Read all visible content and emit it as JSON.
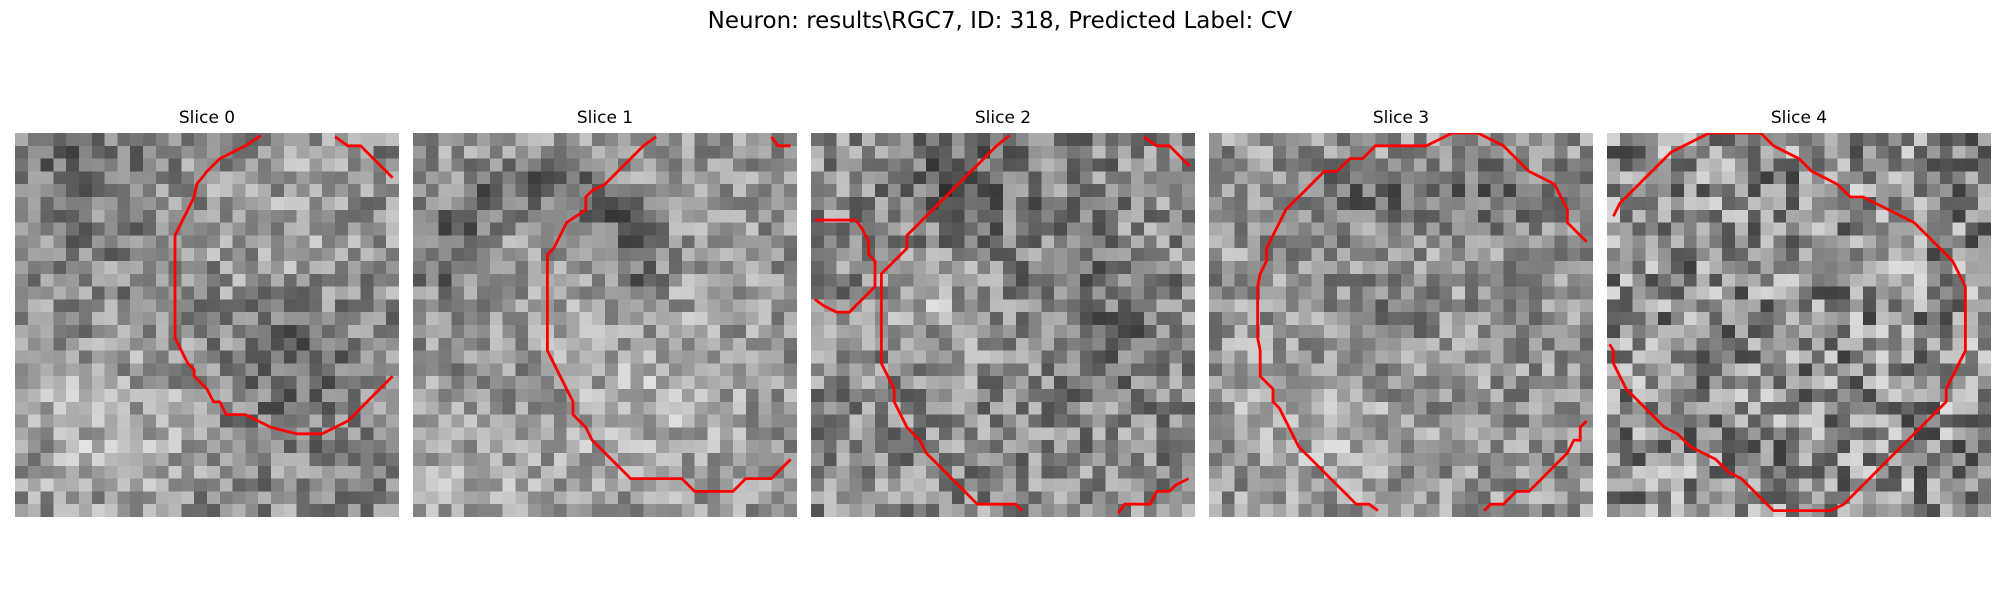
{
  "figure": {
    "title": "Neuron: results\\RGC7, ID: 318, Predicted Label: CV"
  },
  "colors": {
    "contour": "#ff0000",
    "background": "#ffffff"
  },
  "panels": [
    {
      "title": "Slice 0",
      "image_description": "Grayscale noisy 30x30 pixel grid; bright blob in lower-left, dark cluster lower-right; red contour outlining central/right region",
      "contours": [
        [
          [
            19.2,
            0.2
          ],
          [
            18,
            1
          ],
          [
            16,
            2
          ],
          [
            15,
            3
          ],
          [
            14.2,
            4
          ],
          [
            14,
            5
          ],
          [
            13.5,
            6
          ],
          [
            13,
            7
          ],
          [
            12.5,
            8
          ],
          [
            12.5,
            12
          ],
          [
            12.5,
            16
          ],
          [
            13,
            17
          ],
          [
            13.5,
            18
          ],
          [
            14,
            18.5
          ],
          [
            14,
            19
          ],
          [
            15,
            20
          ],
          [
            15.5,
            21
          ],
          [
            16,
            21
          ],
          [
            16.5,
            22
          ],
          [
            18,
            22
          ],
          [
            19,
            22.5
          ],
          [
            20,
            23
          ],
          [
            22,
            23.5
          ],
          [
            24,
            23.5
          ],
          [
            25,
            23
          ],
          [
            26,
            22.5
          ],
          [
            27,
            21.5
          ],
          [
            28,
            20.5
          ],
          [
            29,
            19.5
          ],
          [
            29.5,
            19
          ]
        ],
        [
          [
            25,
            0.3
          ],
          [
            26,
            1
          ],
          [
            27,
            1
          ],
          [
            28,
            2
          ],
          [
            29,
            3
          ],
          [
            29.5,
            3.5
          ]
        ]
      ]
    },
    {
      "title": "Slice 1",
      "image_description": "Grayscale noisy 30x30 pixel grid; dark curved band upper-left, lighter areas center; red contour along left and bottom",
      "contours": [
        [
          [
            19,
            0.3
          ],
          [
            18,
            1
          ],
          [
            17,
            2
          ],
          [
            16,
            3
          ],
          [
            15,
            4
          ],
          [
            14,
            4.5
          ],
          [
            13.5,
            5
          ],
          [
            13.5,
            6
          ],
          [
            12,
            7
          ],
          [
            11.5,
            8
          ],
          [
            11,
            9
          ],
          [
            10.5,
            9.5
          ],
          [
            10.5,
            12
          ],
          [
            10.5,
            17
          ],
          [
            11,
            18
          ],
          [
            11.5,
            19
          ],
          [
            12,
            20
          ],
          [
            12.5,
            21
          ],
          [
            12.5,
            22
          ],
          [
            13.5,
            23
          ],
          [
            14,
            24
          ],
          [
            15,
            25
          ],
          [
            16,
            26
          ],
          [
            17,
            27
          ],
          [
            18,
            27
          ],
          [
            19,
            27
          ],
          [
            21,
            27
          ],
          [
            22,
            28
          ],
          [
            23,
            28
          ],
          [
            24,
            28
          ],
          [
            25,
            28
          ],
          [
            26,
            27
          ],
          [
            28,
            27
          ],
          [
            29,
            26
          ],
          [
            29.5,
            25.5
          ]
        ],
        [
          [
            28,
            0.3
          ],
          [
            28.5,
            1
          ],
          [
            29.5,
            1
          ]
        ]
      ]
    },
    {
      "title": "Slice 2",
      "image_description": "Grayscale noisy 30x30 pixel grid; darker diagonal region upper area, mottled texture; red contours diagonal from top, left notch, bottom-right fragment",
      "contours": [
        [
          [
            15.5,
            0.2
          ],
          [
            14.5,
            1
          ],
          [
            13.5,
            2
          ],
          [
            12.5,
            3
          ],
          [
            11.5,
            4
          ],
          [
            10.5,
            5
          ],
          [
            9.5,
            6
          ],
          [
            8.5,
            7
          ],
          [
            7.5,
            8
          ],
          [
            7.5,
            9
          ],
          [
            6.5,
            10
          ],
          [
            5.5,
            11
          ],
          [
            5.5,
            16
          ],
          [
            5.5,
            18
          ],
          [
            6,
            19
          ],
          [
            6.5,
            20
          ],
          [
            6.5,
            21
          ],
          [
            7,
            22
          ],
          [
            7.5,
            23
          ],
          [
            8.5,
            24
          ],
          [
            9,
            25
          ],
          [
            10,
            26
          ],
          [
            11,
            27
          ],
          [
            12,
            28
          ],
          [
            13,
            29
          ],
          [
            15,
            29
          ],
          [
            16,
            29
          ],
          [
            16.5,
            29.5
          ]
        ],
        [
          [
            0.3,
            6.8
          ],
          [
            3.5,
            6.8
          ],
          [
            4,
            7.5
          ],
          [
            4.5,
            8.5
          ],
          [
            4.5,
            9.5
          ],
          [
            5,
            10
          ],
          [
            5,
            12
          ],
          [
            4.5,
            12.5
          ],
          [
            3.5,
            13.5
          ],
          [
            3,
            14
          ],
          [
            2,
            14
          ],
          [
            1,
            13.5
          ],
          [
            0.3,
            13
          ]
        ],
        [
          [
            24,
            29.7
          ],
          [
            24.5,
            29
          ],
          [
            25.5,
            29
          ],
          [
            26.5,
            29
          ],
          [
            27,
            28
          ],
          [
            28,
            28
          ],
          [
            28.5,
            27.5
          ],
          [
            29.5,
            27
          ]
        ],
        [
          [
            26,
            0.3
          ],
          [
            27,
            1
          ],
          [
            28,
            1
          ],
          [
            29,
            2
          ],
          [
            29.6,
            2.6
          ]
        ]
      ]
    },
    {
      "title": "Slice 3",
      "image_description": "Grayscale noisy 30x30 pixel grid; dark band near top, lighter center with dark spots; large red roughly circular contour",
      "contours": [
        [
          [
            13.2,
            29.5
          ],
          [
            12.5,
            29
          ],
          [
            11.5,
            29
          ],
          [
            11,
            28.5
          ],
          [
            10,
            27.5
          ],
          [
            9,
            26.5
          ],
          [
            8,
            25.5
          ],
          [
            7,
            24.5
          ],
          [
            6.5,
            23.5
          ],
          [
            6,
            22.5
          ],
          [
            5.5,
            21.5
          ],
          [
            5,
            21
          ],
          [
            5,
            20
          ],
          [
            4,
            19
          ],
          [
            4,
            17
          ],
          [
            3.8,
            16
          ],
          [
            3.8,
            12
          ],
          [
            4,
            11
          ],
          [
            4.5,
            10
          ],
          [
            4.5,
            9
          ],
          [
            5,
            8
          ],
          [
            5.5,
            7
          ],
          [
            6,
            6
          ],
          [
            7,
            5
          ],
          [
            8,
            4
          ],
          [
            9,
            3
          ],
          [
            10,
            3
          ],
          [
            11,
            2
          ],
          [
            12,
            2
          ],
          [
            13,
            1
          ],
          [
            15,
            1
          ],
          [
            17,
            1
          ],
          [
            18,
            0.5
          ],
          [
            19,
            0
          ],
          [
            20,
            0
          ],
          [
            21,
            0
          ],
          [
            22,
            0.5
          ],
          [
            23,
            1
          ],
          [
            24,
            2
          ],
          [
            25,
            3
          ],
          [
            26,
            3.5
          ],
          [
            27,
            4
          ],
          [
            27.5,
            5
          ],
          [
            28,
            6
          ],
          [
            28,
            7
          ],
          [
            29,
            8
          ],
          [
            29.5,
            8.5
          ]
        ],
        [
          [
            21.5,
            29.5
          ],
          [
            22,
            29
          ],
          [
            23,
            29
          ],
          [
            24,
            28
          ],
          [
            25,
            28
          ],
          [
            26,
            27
          ],
          [
            27,
            26
          ],
          [
            28,
            25
          ],
          [
            28.5,
            24
          ],
          [
            29,
            24
          ],
          [
            29,
            23
          ],
          [
            29.5,
            22.5
          ]
        ]
      ]
    },
    {
      "title": "Slice 4",
      "image_description": "Grayscale high-noise 30x30 pixel grid; red large circular contour spanning most of the panel",
      "contours": [
        [
          [
            0.5,
            6.5
          ],
          [
            1,
            5.5
          ],
          [
            2,
            4.5
          ],
          [
            3,
            3.5
          ],
          [
            4,
            2.5
          ],
          [
            5,
            1.5
          ],
          [
            6,
            1
          ],
          [
            7,
            0.5
          ],
          [
            8,
            0
          ],
          [
            10,
            0
          ],
          [
            12,
            0
          ],
          [
            12.5,
            0.5
          ],
          [
            13,
            1
          ],
          [
            14,
            1.5
          ],
          [
            15,
            2
          ],
          [
            16,
            3
          ],
          [
            17,
            3.5
          ],
          [
            18,
            4
          ],
          [
            19,
            5
          ],
          [
            20,
            5
          ],
          [
            21,
            5.5
          ],
          [
            22,
            6
          ],
          [
            23,
            6.5
          ],
          [
            24,
            7
          ],
          [
            25,
            8
          ],
          [
            26,
            9
          ],
          [
            27,
            10
          ],
          [
            27.5,
            11
          ],
          [
            28,
            12
          ],
          [
            28,
            14
          ],
          [
            28,
            16
          ],
          [
            28,
            17
          ],
          [
            27.5,
            18
          ],
          [
            27,
            19
          ],
          [
            26.5,
            20
          ],
          [
            26.5,
            21
          ],
          [
            25.5,
            22
          ],
          [
            24.5,
            23
          ],
          [
            23.5,
            24
          ],
          [
            22.5,
            25
          ],
          [
            21.5,
            26
          ],
          [
            20.5,
            27
          ],
          [
            19.5,
            28
          ],
          [
            18.5,
            29
          ],
          [
            17.5,
            29.5
          ],
          [
            15,
            29.5
          ],
          [
            13,
            29.5
          ],
          [
            12.5,
            29
          ],
          [
            11.5,
            28
          ],
          [
            10.5,
            27
          ],
          [
            9.5,
            26.5
          ],
          [
            8.5,
            25.5
          ],
          [
            7.5,
            25
          ],
          [
            6.5,
            24.5
          ],
          [
            5.5,
            23.5
          ],
          [
            4.5,
            23
          ],
          [
            3.5,
            22
          ],
          [
            2.5,
            21
          ],
          [
            1.5,
            20
          ],
          [
            1,
            19
          ],
          [
            0.5,
            18
          ],
          [
            0.5,
            17
          ],
          [
            0.2,
            16.5
          ]
        ]
      ]
    }
  ]
}
